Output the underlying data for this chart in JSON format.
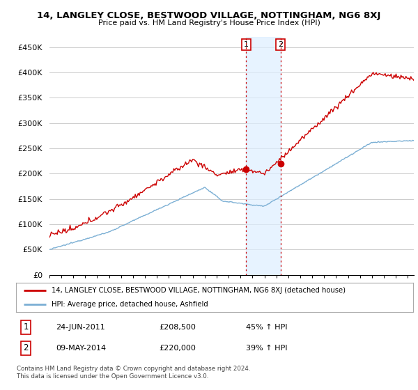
{
  "title": "14, LANGLEY CLOSE, BESTWOOD VILLAGE, NOTTINGHAM, NG6 8XJ",
  "subtitle": "Price paid vs. HM Land Registry's House Price Index (HPI)",
  "ylabel_ticks": [
    "£0",
    "£50K",
    "£100K",
    "£150K",
    "£200K",
    "£250K",
    "£300K",
    "£350K",
    "£400K",
    "£450K"
  ],
  "ylabel_values": [
    0,
    50000,
    100000,
    150000,
    200000,
    250000,
    300000,
    350000,
    400000,
    450000
  ],
  "ylim": [
    0,
    470000
  ],
  "xlim_start": 1995.0,
  "xlim_end": 2025.5,
  "red_line_color": "#cc0000",
  "blue_line_color": "#7bafd4",
  "background_color": "#ffffff",
  "grid_color": "#cccccc",
  "transaction1_x": 2011.47,
  "transaction1_y": 208500,
  "transaction2_x": 2014.35,
  "transaction2_y": 220000,
  "legend_line1": "14, LANGLEY CLOSE, BESTWOOD VILLAGE, NOTTINGHAM, NG6 8XJ (detached house)",
  "legend_line2": "HPI: Average price, detached house, Ashfield",
  "footer1": "Contains HM Land Registry data © Crown copyright and database right 2024.",
  "footer2": "This data is licensed under the Open Government Licence v3.0.",
  "table_row1": [
    "1",
    "24-JUN-2011",
    "£208,500",
    "45% ↑ HPI"
  ],
  "table_row2": [
    "2",
    "09-MAY-2014",
    "£220,000",
    "39% ↑ HPI"
  ]
}
